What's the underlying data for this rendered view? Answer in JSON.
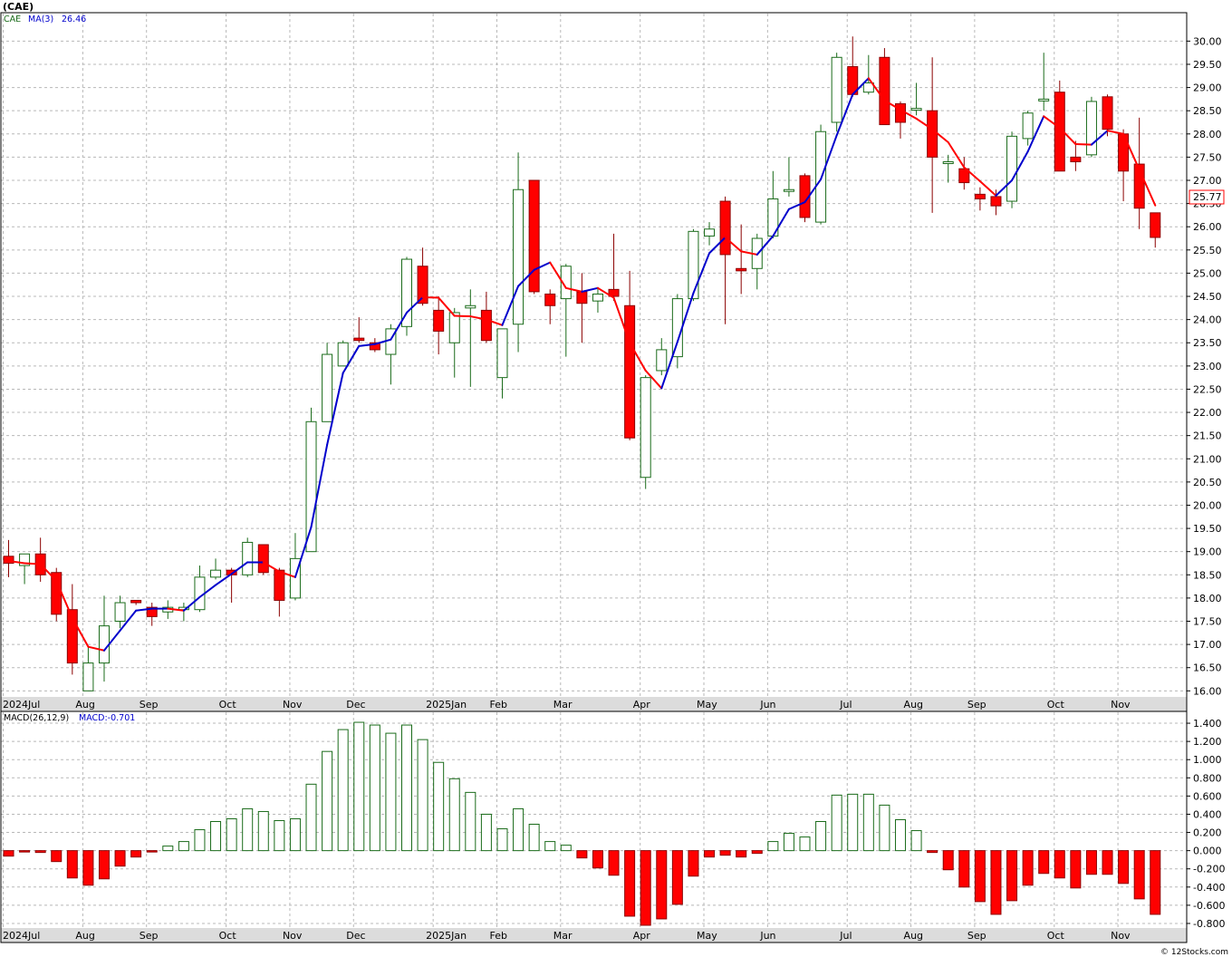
{
  "title": "(CAE)",
  "source": "© 12Stocks.com",
  "colors": {
    "up": "#1a6b1a",
    "down": "#ff0000",
    "ma_up": "#0000cc",
    "ma_down": "#ff0000",
    "grid": "#b8b8b8",
    "axis_bg": "#dcdcdc"
  },
  "legend": {
    "ticker": "CAE",
    "ma_label": "MA(3)",
    "ma_value": "26.46"
  },
  "macd_legend": {
    "label": "MACD(26,12,9)",
    "value_label": "MACD:-0.701"
  },
  "last_price_label": "25.77",
  "chart_data": [
    {
      "type": "candlestick",
      "interval": "weekly",
      "ylim": [
        15.85,
        30.3
      ],
      "y_ticks": [
        "16.00",
        "16.50",
        "17.00",
        "17.50",
        "18.00",
        "18.50",
        "19.00",
        "19.50",
        "20.00",
        "20.50",
        "21.00",
        "21.50",
        "22.00",
        "22.50",
        "23.00",
        "23.50",
        "24.00",
        "24.50",
        "25.00",
        "25.50",
        "26.00",
        "26.50",
        "27.00",
        "27.50",
        "28.00",
        "28.50",
        "29.00",
        "29.50",
        "30.00"
      ],
      "x_ticks": [
        {
          "label": "2024Jul",
          "index": 0
        },
        {
          "label": "Aug",
          "index": 5
        },
        {
          "label": "Sep",
          "index": 9
        },
        {
          "label": "Oct",
          "index": 14
        },
        {
          "label": "Nov",
          "index": 18
        },
        {
          "label": "Dec",
          "index": 22
        },
        {
          "label": "2025Jan",
          "index": 27
        },
        {
          "label": "Feb",
          "index": 31
        },
        {
          "label": "Mar",
          "index": 35
        },
        {
          "label": "Apr",
          "index": 40
        },
        {
          "label": "May",
          "index": 44
        },
        {
          "label": "Jun",
          "index": 48
        },
        {
          "label": "Jul",
          "index": 53
        },
        {
          "label": "Aug",
          "index": 57
        },
        {
          "label": "Sep",
          "index": 61
        },
        {
          "label": "Oct",
          "index": 66
        },
        {
          "label": "Nov",
          "index": 70
        }
      ],
      "candles": [
        {
          "o": 18.9,
          "h": 19.25,
          "l": 18.45,
          "c": 18.75
        },
        {
          "o": 18.7,
          "h": 18.95,
          "l": 18.3,
          "c": 18.95
        },
        {
          "o": 18.95,
          "h": 19.3,
          "l": 18.35,
          "c": 18.5
        },
        {
          "o": 18.55,
          "h": 18.65,
          "l": 17.5,
          "c": 17.65
        },
        {
          "o": 17.75,
          "h": 18.3,
          "l": 16.35,
          "c": 16.6
        },
        {
          "o": 16.0,
          "h": 16.95,
          "l": 16.0,
          "c": 16.6
        },
        {
          "o": 16.6,
          "h": 18.05,
          "l": 16.2,
          "c": 17.4
        },
        {
          "o": 17.5,
          "h": 18.05,
          "l": 17.35,
          "c": 17.9
        },
        {
          "o": 17.95,
          "h": 17.95,
          "l": 17.85,
          "c": 17.9
        },
        {
          "o": 17.8,
          "h": 17.9,
          "l": 17.4,
          "c": 17.6
        },
        {
          "o": 17.7,
          "h": 17.95,
          "l": 17.55,
          "c": 17.8
        },
        {
          "o": 17.75,
          "h": 17.9,
          "l": 17.5,
          "c": 17.8
        },
        {
          "o": 17.75,
          "h": 18.7,
          "l": 17.7,
          "c": 18.45
        },
        {
          "o": 18.45,
          "h": 18.85,
          "l": 18.4,
          "c": 18.6
        },
        {
          "o": 18.6,
          "h": 18.65,
          "l": 17.9,
          "c": 18.5
        },
        {
          "o": 18.5,
          "h": 19.3,
          "l": 18.45,
          "c": 19.2
        },
        {
          "o": 19.15,
          "h": 19.15,
          "l": 18.5,
          "c": 18.55
        },
        {
          "o": 18.6,
          "h": 18.65,
          "l": 17.6,
          "c": 17.95
        },
        {
          "o": 18.0,
          "h": 19.4,
          "l": 17.95,
          "c": 18.85
        },
        {
          "o": 19.0,
          "h": 22.1,
          "l": 19.0,
          "c": 21.8
        },
        {
          "o": 21.8,
          "h": 23.5,
          "l": 21.8,
          "c": 23.25
        },
        {
          "o": 23.0,
          "h": 23.55,
          "l": 23.0,
          "c": 23.5
        },
        {
          "o": 23.6,
          "h": 24.05,
          "l": 23.5,
          "c": 23.55
        },
        {
          "o": 23.5,
          "h": 23.6,
          "l": 23.3,
          "c": 23.35
        },
        {
          "o": 23.25,
          "h": 23.9,
          "l": 22.6,
          "c": 23.8
        },
        {
          "o": 23.85,
          "h": 25.35,
          "l": 23.65,
          "c": 25.3
        },
        {
          "o": 25.15,
          "h": 25.55,
          "l": 24.3,
          "c": 24.35
        },
        {
          "o": 24.2,
          "h": 24.5,
          "l": 23.25,
          "c": 23.75
        },
        {
          "o": 23.5,
          "h": 24.25,
          "l": 22.75,
          "c": 24.15
        },
        {
          "o": 24.25,
          "h": 24.65,
          "l": 22.55,
          "c": 24.3
        },
        {
          "o": 24.2,
          "h": 24.6,
          "l": 23.5,
          "c": 23.55
        },
        {
          "o": 22.75,
          "h": 23.8,
          "l": 22.3,
          "c": 23.8
        },
        {
          "o": 23.9,
          "h": 27.6,
          "l": 23.3,
          "c": 26.8
        },
        {
          "o": 27.0,
          "h": 27.0,
          "l": 24.55,
          "c": 24.6
        },
        {
          "o": 24.55,
          "h": 24.65,
          "l": 23.9,
          "c": 24.3
        },
        {
          "o": 24.45,
          "h": 25.2,
          "l": 23.2,
          "c": 25.15
        },
        {
          "o": 24.6,
          "h": 25.0,
          "l": 23.5,
          "c": 24.35
        },
        {
          "o": 24.4,
          "h": 24.7,
          "l": 24.15,
          "c": 24.55
        },
        {
          "o": 24.65,
          "h": 25.85,
          "l": 24.4,
          "c": 24.5
        },
        {
          "o": 24.3,
          "h": 25.05,
          "l": 21.4,
          "c": 21.45
        },
        {
          "o": 20.6,
          "h": 22.8,
          "l": 20.35,
          "c": 22.75
        },
        {
          "o": 22.9,
          "h": 23.6,
          "l": 22.8,
          "c": 23.35
        },
        {
          "o": 23.2,
          "h": 24.55,
          "l": 22.95,
          "c": 24.45
        },
        {
          "o": 24.45,
          "h": 25.95,
          "l": 24.4,
          "c": 25.9
        },
        {
          "o": 25.8,
          "h": 26.1,
          "l": 25.6,
          "c": 25.95
        },
        {
          "o": 26.55,
          "h": 26.65,
          "l": 23.9,
          "c": 25.4
        },
        {
          "o": 25.1,
          "h": 26.05,
          "l": 24.55,
          "c": 25.05
        },
        {
          "o": 25.1,
          "h": 25.85,
          "l": 24.65,
          "c": 25.75
        },
        {
          "o": 25.8,
          "h": 27.2,
          "l": 25.75,
          "c": 26.6
        },
        {
          "o": 26.8,
          "h": 27.5,
          "l": 26.65,
          "c": 26.8
        },
        {
          "o": 27.1,
          "h": 27.15,
          "l": 26.1,
          "c": 26.2
        },
        {
          "o": 26.1,
          "h": 28.2,
          "l": 26.05,
          "c": 28.05
        },
        {
          "o": 28.25,
          "h": 29.75,
          "l": 28.05,
          "c": 29.65
        },
        {
          "o": 29.45,
          "h": 30.1,
          "l": 28.8,
          "c": 28.85
        },
        {
          "o": 28.9,
          "h": 29.7,
          "l": 28.85,
          "c": 29.1
        },
        {
          "o": 29.65,
          "h": 29.85,
          "l": 28.25,
          "c": 28.2
        },
        {
          "o": 28.65,
          "h": 28.7,
          "l": 27.9,
          "c": 28.25
        },
        {
          "o": 28.55,
          "h": 29.1,
          "l": 28.4,
          "c": 28.55
        },
        {
          "o": 28.5,
          "h": 29.65,
          "l": 26.3,
          "c": 27.5
        },
        {
          "o": 27.4,
          "h": 27.55,
          "l": 26.95,
          "c": 27.4
        },
        {
          "o": 27.25,
          "h": 27.5,
          "l": 26.8,
          "c": 26.95
        },
        {
          "o": 26.7,
          "h": 26.85,
          "l": 26.35,
          "c": 26.6
        },
        {
          "o": 26.65,
          "h": 26.8,
          "l": 26.25,
          "c": 26.45
        },
        {
          "o": 26.55,
          "h": 28.05,
          "l": 26.4,
          "c": 27.95
        },
        {
          "o": 27.9,
          "h": 28.5,
          "l": 27.75,
          "c": 28.45
        },
        {
          "o": 28.75,
          "h": 29.75,
          "l": 28.5,
          "c": 28.75
        },
        {
          "o": 28.9,
          "h": 29.15,
          "l": 27.2,
          "c": 27.2
        },
        {
          "o": 27.5,
          "h": 27.85,
          "l": 27.2,
          "c": 27.4
        },
        {
          "o": 27.55,
          "h": 28.8,
          "l": 27.5,
          "c": 28.7
        },
        {
          "o": 28.8,
          "h": 28.85,
          "l": 27.95,
          "c": 28.1
        },
        {
          "o": 28.0,
          "h": 28.1,
          "l": 26.55,
          "c": 27.2
        },
        {
          "o": 27.35,
          "h": 28.35,
          "l": 25.95,
          "c": 26.4
        },
        {
          "o": 26.3,
          "h": 26.3,
          "l": 25.55,
          "c": 25.77
        }
      ],
      "ma3": [
        18.8,
        18.75,
        18.73,
        18.37,
        17.57,
        16.95,
        16.87,
        17.3,
        17.73,
        17.77,
        17.77,
        17.73,
        18.02,
        18.28,
        18.52,
        18.77,
        18.77,
        18.57,
        18.45,
        19.53,
        21.3,
        22.85,
        23.43,
        23.47,
        23.57,
        24.15,
        24.48,
        24.47,
        24.08,
        24.07,
        24.0,
        23.88,
        24.72,
        25.07,
        25.23,
        24.68,
        24.6,
        24.68,
        24.47,
        23.5,
        22.9,
        22.52,
        23.52,
        24.57,
        25.43,
        25.77,
        25.47,
        25.4,
        25.8,
        26.38,
        26.53,
        27.02,
        27.97,
        28.85,
        29.2,
        28.72,
        28.52,
        28.33,
        28.1,
        27.82,
        27.28,
        26.98,
        26.67,
        27.0,
        27.62,
        28.38,
        28.13,
        27.78,
        27.77,
        28.07,
        28.0,
        27.23,
        26.46
      ]
    },
    {
      "type": "bar",
      "name": "MACD(26,12,9)",
      "ylim": [
        -0.85,
        1.5
      ],
      "y_ticks": [
        "-0.800",
        "-0.600",
        "-0.400",
        "-0.200",
        "0.000",
        "0.200",
        "0.400",
        "0.600",
        "0.800",
        "1.000",
        "1.200",
        "1.400"
      ],
      "values": [
        -0.06,
        -0.01,
        -0.02,
        -0.12,
        -0.3,
        -0.38,
        -0.31,
        -0.17,
        -0.07,
        -0.01,
        0.05,
        0.1,
        0.23,
        0.32,
        0.35,
        0.46,
        0.43,
        0.33,
        0.35,
        0.73,
        1.09,
        1.33,
        1.41,
        1.38,
        1.29,
        1.38,
        1.22,
        0.97,
        0.79,
        0.64,
        0.4,
        0.24,
        0.46,
        0.29,
        0.1,
        0.06,
        -0.08,
        -0.19,
        -0.27,
        -0.72,
        -0.82,
        -0.75,
        -0.59,
        -0.28,
        -0.07,
        -0.05,
        -0.07,
        -0.03,
        0.1,
        0.19,
        0.15,
        0.32,
        0.61,
        0.62,
        0.62,
        0.5,
        0.34,
        0.22,
        -0.02,
        -0.21,
        -0.4,
        -0.56,
        -0.7,
        -0.55,
        -0.38,
        -0.25,
        -0.3,
        -0.41,
        -0.26,
        -0.26,
        -0.36,
        -0.53,
        -0.7
      ]
    }
  ]
}
